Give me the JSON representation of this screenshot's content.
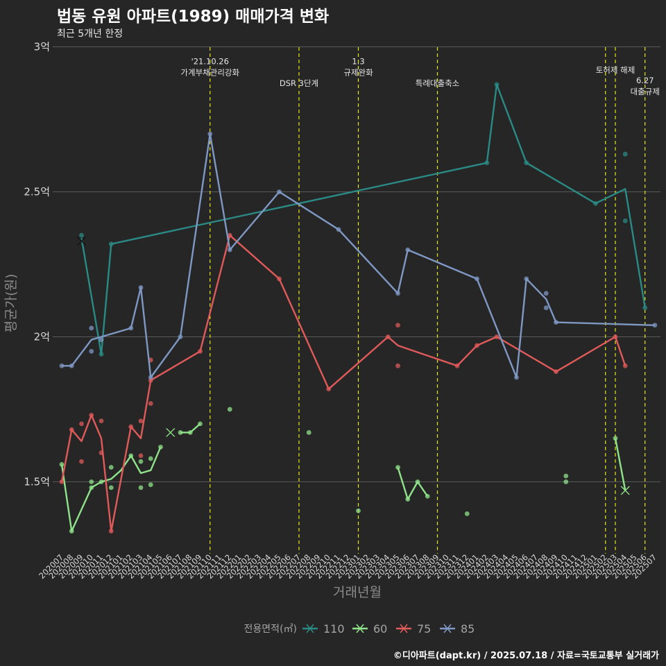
{
  "title": "법동 유원 아파트(1989) 매매가격 변화",
  "subtitle": "최근 5개년 한정",
  "caption": "©디아파트(dapt.kr) / 2025.07.18 / 자료=국토교통부 실거래가",
  "chart_data": {
    "type": "line",
    "xlabel": "거래년월",
    "ylabel": "평균가(원)",
    "ylim": [
      1.23,
      3.0
    ],
    "y_ticks": [
      {
        "value": 1.5,
        "label": "1.5억"
      },
      {
        "value": 2.0,
        "label": "2억"
      },
      {
        "value": 2.5,
        "label": "2.5억"
      },
      {
        "value": 3.0,
        "label": "3억"
      }
    ],
    "categories": [
      "202007",
      "202008",
      "202009",
      "202010",
      "202011",
      "202012",
      "202101",
      "202102",
      "202103",
      "202104",
      "202105",
      "202106",
      "202107",
      "202108",
      "202109",
      "202110",
      "202111",
      "202112",
      "202201",
      "202202",
      "202203",
      "202204",
      "202205",
      "202206",
      "202207",
      "202208",
      "202209",
      "202210",
      "202211",
      "202212",
      "202301",
      "202302",
      "202303",
      "202304",
      "202305",
      "202306",
      "202307",
      "202308",
      "202309",
      "202310",
      "202311",
      "202312",
      "202401",
      "202402",
      "202403",
      "202404",
      "202405",
      "202406",
      "202407",
      "202408",
      "202409",
      "202410",
      "202411",
      "202412",
      "202501",
      "202502",
      "202503",
      "202504",
      "202505",
      "202506",
      "202507"
    ],
    "legend": {
      "title": "전용면적(㎡)",
      "position": "bottom"
    },
    "events": [
      {
        "x": 15.0,
        "label": [
          "'21.10.26",
          "가계부채관리강화"
        ],
        "label_y": 2.94
      },
      {
        "x": 24.0,
        "label": [
          "DSR 3단계"
        ],
        "label_y": 2.865
      },
      {
        "x": 30.0,
        "label": [
          "1.3",
          "규제완화"
        ],
        "label_y": 2.94
      },
      {
        "x": 38.0,
        "label": [
          "특례대출축소"
        ],
        "label_y": 2.865
      },
      {
        "x": 55.0,
        "label": [],
        "label_y": 0
      },
      {
        "x": 56.0,
        "label": [
          "토허제 해제"
        ],
        "label_y": 2.91
      },
      {
        "x": 59.0,
        "label": [
          "6.27",
          "대출규제"
        ],
        "label_y": 2.875
      }
    ],
    "series": [
      {
        "name": "110",
        "color": "#2a8a86",
        "line": [
          [
            2,
            2.34
          ],
          [
            4,
            1.94
          ],
          [
            5,
            2.32
          ],
          [
            43,
            2.6
          ],
          [
            44,
            2.87
          ],
          [
            47,
            2.6
          ],
          [
            54,
            2.46
          ],
          [
            57,
            2.51
          ],
          [
            59,
            2.1
          ]
        ],
        "points": [
          [
            2,
            2.35
          ],
          [
            4,
            1.94
          ],
          [
            5,
            2.32
          ],
          [
            43,
            2.6
          ],
          [
            44,
            2.87
          ],
          [
            47,
            2.6
          ],
          [
            54,
            2.46
          ],
          [
            57,
            2.63
          ],
          [
            57,
            2.4
          ],
          [
            59,
            2.1
          ]
        ],
        "crosses": [
          [
            2,
            2.33
          ]
        ]
      },
      {
        "name": "60",
        "color": "#8fe38a",
        "line": [
          [
            0,
            1.56
          ],
          [
            1,
            1.33
          ],
          [
            3,
            1.48
          ],
          [
            4,
            1.5
          ],
          [
            5,
            1.51
          ],
          [
            6,
            1.54
          ],
          [
            7,
            1.59
          ],
          [
            8,
            1.53
          ],
          [
            9,
            1.54
          ],
          [
            10,
            1.62
          ]
        ],
        "line2": [
          [
            12,
            1.67
          ],
          [
            13,
            1.67
          ],
          [
            14,
            1.7
          ]
        ],
        "line3": [
          [
            34,
            1.55
          ],
          [
            35,
            1.44
          ],
          [
            36,
            1.5
          ],
          [
            37,
            1.45
          ]
        ],
        "line4": [
          [
            56,
            1.65
          ],
          [
            57,
            1.47
          ]
        ],
        "points": [
          [
            0,
            1.56
          ],
          [
            1,
            1.33
          ],
          [
            3,
            1.5
          ],
          [
            3,
            1.48
          ],
          [
            4,
            1.5
          ],
          [
            5,
            1.55
          ],
          [
            5,
            1.48
          ],
          [
            7,
            1.59
          ],
          [
            8,
            1.57
          ],
          [
            8,
            1.48
          ],
          [
            9,
            1.58
          ],
          [
            9,
            1.49
          ],
          [
            10,
            1.62
          ],
          [
            12,
            1.67
          ],
          [
            13,
            1.67
          ],
          [
            14,
            1.7
          ],
          [
            17,
            1.75
          ],
          [
            25,
            1.67
          ],
          [
            30,
            1.4
          ],
          [
            34,
            1.55
          ],
          [
            35,
            1.44
          ],
          [
            36,
            1.5
          ],
          [
            37,
            1.45
          ],
          [
            41,
            1.39
          ],
          [
            51,
            1.52
          ],
          [
            51,
            1.5
          ],
          [
            56,
            1.65
          ]
        ],
        "crosses": [
          [
            11,
            1.67
          ],
          [
            57,
            1.47
          ]
        ]
      },
      {
        "name": "75",
        "color": "#e05a5a",
        "line": [
          [
            0,
            1.5
          ],
          [
            1,
            1.68
          ],
          [
            2,
            1.64
          ],
          [
            3,
            1.73
          ],
          [
            4,
            1.65
          ],
          [
            5,
            1.33
          ],
          [
            6,
            1.51
          ],
          [
            7,
            1.69
          ],
          [
            8,
            1.65
          ],
          [
            9,
            1.85
          ],
          [
            14,
            1.95
          ],
          [
            17,
            2.35
          ],
          [
            22,
            2.2
          ],
          [
            27,
            1.82
          ],
          [
            33,
            2.0
          ],
          [
            34,
            1.97
          ],
          [
            40,
            1.9
          ],
          [
            42,
            1.97
          ],
          [
            44,
            2.0
          ],
          [
            50,
            1.88
          ],
          [
            56,
            2.0
          ],
          [
            57,
            1.9
          ]
        ],
        "points": [
          [
            0,
            1.5
          ],
          [
            1,
            1.68
          ],
          [
            2,
            1.7
          ],
          [
            2,
            1.57
          ],
          [
            3,
            1.73
          ],
          [
            4,
            1.71
          ],
          [
            4,
            1.6
          ],
          [
            5,
            1.33
          ],
          [
            7,
            1.69
          ],
          [
            8,
            1.71
          ],
          [
            8,
            1.59
          ],
          [
            9,
            1.92
          ],
          [
            9,
            1.77
          ],
          [
            9,
            1.85
          ],
          [
            14,
            1.95
          ],
          [
            17,
            2.35
          ],
          [
            22,
            2.2
          ],
          [
            27,
            1.82
          ],
          [
            33,
            2.0
          ],
          [
            34,
            2.04
          ],
          [
            34,
            1.9
          ],
          [
            40,
            1.9
          ],
          [
            42,
            1.97
          ],
          [
            44,
            2.0
          ],
          [
            50,
            1.88
          ],
          [
            56,
            2.0
          ],
          [
            57,
            1.9
          ]
        ],
        "crosses": []
      },
      {
        "name": "85",
        "color": "#7f98c4",
        "line": [
          [
            0,
            1.9
          ],
          [
            1,
            1.9
          ],
          [
            3,
            1.99
          ],
          [
            4,
            2.0
          ],
          [
            7,
            2.03
          ],
          [
            8,
            2.17
          ],
          [
            9,
            1.86
          ],
          [
            12,
            2.0
          ],
          [
            15,
            2.7
          ],
          [
            17,
            2.3
          ],
          [
            22,
            2.5
          ],
          [
            28,
            2.37
          ],
          [
            34,
            2.15
          ],
          [
            35,
            2.3
          ],
          [
            42,
            2.2
          ],
          [
            46,
            1.86
          ],
          [
            47,
            2.2
          ],
          [
            49,
            2.13
          ],
          [
            50,
            2.05
          ],
          [
            60,
            2.04
          ]
        ],
        "points": [
          [
            0,
            1.9
          ],
          [
            1,
            1.9
          ],
          [
            3,
            2.03
          ],
          [
            3,
            1.95
          ],
          [
            4,
            1.99
          ],
          [
            7,
            2.03
          ],
          [
            8,
            2.17
          ],
          [
            9,
            1.86
          ],
          [
            12,
            2.0
          ],
          [
            15,
            2.7
          ],
          [
            17,
            2.3
          ],
          [
            22,
            2.5
          ],
          [
            28,
            2.37
          ],
          [
            34,
            2.15
          ],
          [
            35,
            2.3
          ],
          [
            42,
            2.2
          ],
          [
            46,
            1.86
          ],
          [
            47,
            2.2
          ],
          [
            49,
            2.15
          ],
          [
            49,
            2.1
          ],
          [
            50,
            2.05
          ],
          [
            60,
            2.04
          ]
        ],
        "crosses": []
      }
    ]
  }
}
